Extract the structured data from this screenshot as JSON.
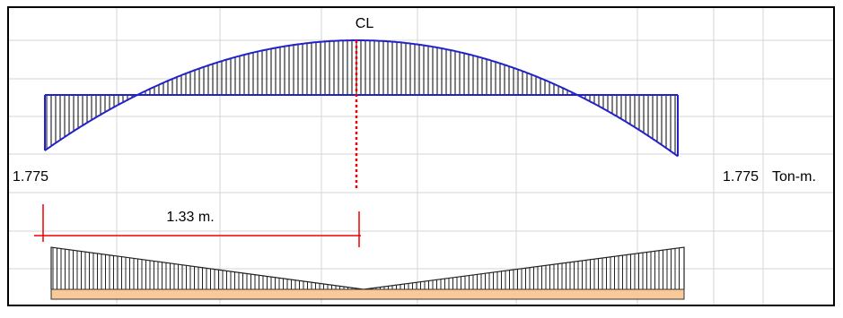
{
  "centerline_label": "CL",
  "left_moment_label": "1.775",
  "right_moment_label": "1.775",
  "moment_unit": "Ton-m.",
  "dimension_label": "1.33 m."
}
